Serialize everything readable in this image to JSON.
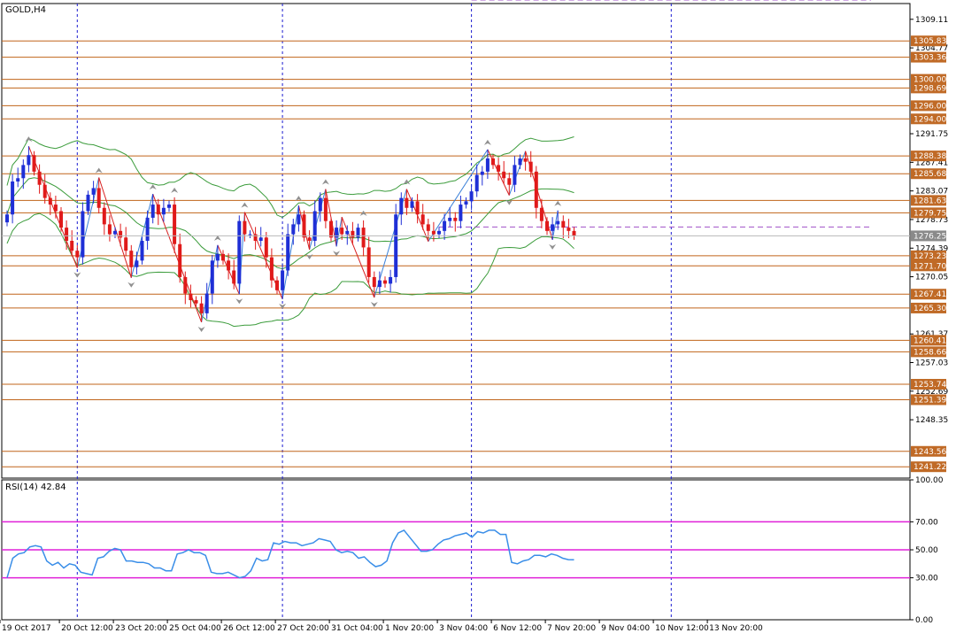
{
  "colors": {
    "background": "#ffffff",
    "bull_candle": "#1f2fd6",
    "bear_candle": "#e01a1a",
    "level_line": "#c0641a",
    "level_tag": "#c06a26",
    "current_tag": "#8a8a8a",
    "grid": "#1b1bd0",
    "bands": "#3c9c3c",
    "channel": "#a050c8",
    "zigzag_up": "#3a80d8",
    "zigzag_down": "#d82020",
    "rsi_line": "#3a8ee8",
    "rsi_level": "#e020d8",
    "fractal": "#909090"
  },
  "chart_data": [
    {
      "type": "candlestick",
      "title": "GOLD,H4",
      "symbol": "GOLD",
      "timeframe": "H4",
      "ylim": [
        1239.5,
        1311.5
      ],
      "y_ticks": [
        "1309.11",
        "1304.77",
        "1291.75",
        "1287.41",
        "1283.07",
        "1278.73",
        "1274.39",
        "1270.05",
        "1261.37",
        "1257.03",
        "1252.69",
        "1248.35"
      ],
      "x_ticks": [
        "19 Oct 2017",
        "20 Oct 12:00",
        "23 Oct 20:00",
        "25 Oct 04:00",
        "26 Oct 12:00",
        "27 Oct 20:00",
        "31 Oct 04:00",
        "1 Nov 20:00",
        "3 Nov 04:00",
        "6 Nov 12:00",
        "7 Nov 20:00",
        "9 Nov 04:00",
        "10 Nov 12:00",
        "13 Nov 20:00"
      ],
      "x_tick_bars": [
        0,
        11,
        21,
        31,
        41,
        51,
        61,
        71,
        81,
        91,
        101,
        111,
        121,
        131
      ],
      "period_separator_bars": [
        13,
        51,
        86,
        123
      ],
      "horizontal_levels": [
        "1305.83",
        "1303.36",
        "1300.00",
        "1298.69",
        "1296.00",
        "1294.00",
        "1288.38",
        "1285.68",
        "1281.63",
        "1279.75",
        "1273.23",
        "1271.70",
        "1267.41",
        "1265.30",
        "1260.41",
        "1258.66",
        "1253.74",
        "1251.39",
        "1243.56",
        "1241.22"
      ],
      "current_price": "1276.25",
      "close": [
        1279.5,
        1284.5,
        1285.0,
        1287.0,
        1288.5,
        1286.0,
        1284.0,
        1282.0,
        1281.0,
        1280.0,
        1277.5,
        1275.5,
        1274.0,
        1273.0,
        1280.0,
        1282.5,
        1283.5,
        1280.5,
        1278.0,
        1276.5,
        1277.0,
        1276.0,
        1274.0,
        1271.5,
        1272.5,
        1275.5,
        1279.0,
        1281.0,
        1279.5,
        1280.5,
        1281.0,
        1275.0,
        1270.0,
        1267.5,
        1266.5,
        1266.0,
        1264.5,
        1267.5,
        1272.5,
        1273.5,
        1272.5,
        1271.0,
        1269.0,
        1278.5,
        1276.5,
        1276.5,
        1275.5,
        1276.0,
        1273.0,
        1269.5,
        1268.0,
        1271.0,
        1276.5,
        1278.0,
        1279.5,
        1276.0,
        1275.5,
        1280.0,
        1282.0,
        1278.5,
        1276.0,
        1277.5,
        1276.5,
        1277.0,
        1276.0,
        1277.5,
        1274.5,
        1270.0,
        1268.5,
        1269.5,
        1269.0,
        1270.0,
        1279.5,
        1282.0,
        1280.5,
        1281.5,
        1279.5,
        1278.0,
        1277.0,
        1276.5,
        1277.0,
        1278.5,
        1279.0,
        1278.5,
        1281.0,
        1281.5,
        1283.0,
        1285.5,
        1286.0,
        1288.0,
        1287.0,
        1286.0,
        1285.0,
        1284.0,
        1287.0,
        1288.0,
        1287.5,
        1286.0,
        1280.5,
        1278.5,
        1277.0,
        1278.0,
        1278.5,
        1277.5,
        1277.0,
        1276.25
      ],
      "rsi": {
        "label": "RSI(14) 42.84",
        "period": 14,
        "value": "42.84",
        "ylim": [
          0,
          100
        ],
        "y_ticks": [
          "100.00",
          "70.00",
          "50.00",
          "30.00",
          "0.00"
        ],
        "levels": [
          70,
          50,
          30
        ],
        "values": [
          30,
          44,
          47,
          48,
          52,
          53,
          52,
          42,
          39,
          41,
          37,
          40,
          39,
          34,
          33,
          32,
          44,
          45,
          49,
          51,
          50,
          42,
          42,
          41,
          41,
          40,
          37,
          37,
          35,
          35,
          47,
          48,
          50,
          48,
          48,
          46,
          34,
          33,
          33,
          34,
          32,
          30,
          31,
          35,
          44,
          42,
          43,
          55,
          54,
          56,
          55,
          55,
          53,
          54,
          55,
          58,
          57,
          56,
          50,
          48,
          49,
          48,
          44,
          45,
          41,
          38,
          39,
          42,
          55,
          62,
          64,
          59,
          54,
          49,
          49,
          50,
          54,
          57,
          58,
          60,
          61,
          62,
          59,
          63,
          62,
          64,
          64,
          61,
          61,
          41,
          40,
          42,
          43,
          46,
          46,
          45,
          47,
          46,
          44,
          43,
          42.84
        ]
      }
    }
  ]
}
